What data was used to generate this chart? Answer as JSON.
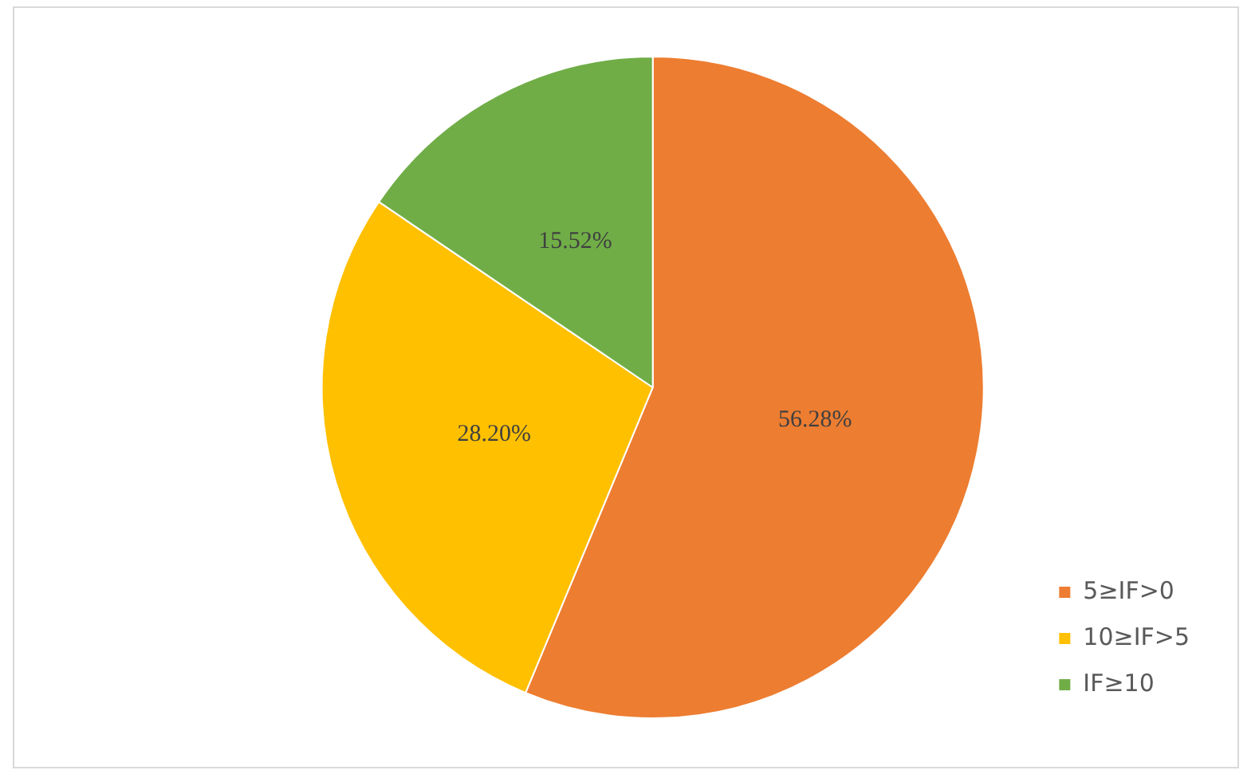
{
  "chart_data": {
    "type": "pie",
    "categories": [
      "5≥IF>0",
      "10≥IF>5",
      "IF≥10"
    ],
    "values": [
      56.28,
      28.2,
      15.52
    ],
    "colors": [
      "#ed7d31",
      "#ffc000",
      "#70ad47"
    ],
    "value_labels": [
      "56.28%",
      "28.20%",
      "15.52%"
    ],
    "legend": "bottom right"
  }
}
